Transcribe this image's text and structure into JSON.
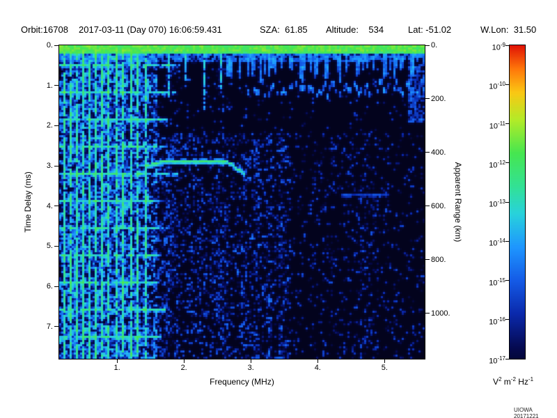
{
  "header": {
    "orbit": "Orbit:16708",
    "datetime": "2017-03-11 (Day 070) 16:06:59.431",
    "sza": "SZA:  61.85",
    "altitude": "Altitude:    534",
    "lat": "Lat: -51.02",
    "wlon": "W.Lon:  31.50"
  },
  "axes": {
    "left": {
      "title": "Time Delay (ms)",
      "tick_labels": [
        "0.",
        "1.",
        "2.",
        "3.",
        "4.",
        "5.",
        "6.",
        "7."
      ],
      "tick_values": [
        0,
        1,
        2,
        3,
        4,
        5,
        6,
        7
      ]
    },
    "right": {
      "title": "Apparent Range (km)",
      "tick_labels": [
        "0.",
        "200.",
        "400.",
        "600.",
        "800.",
        "1000."
      ],
      "tick_values": [
        0,
        200,
        400,
        600,
        800,
        1000
      ],
      "km_per_ms": 150
    },
    "bottom": {
      "title": "Frequency (MHz)",
      "tick_labels": [
        "1.",
        "2.",
        "3.",
        "4.",
        "5."
      ],
      "tick_values": [
        1,
        2,
        3,
        4,
        5
      ]
    }
  },
  "colorbar": {
    "label_base": "10",
    "exponents": [
      "-9",
      "-10",
      "-11",
      "-12",
      "-13",
      "-14",
      "-15",
      "-16",
      "-17"
    ],
    "units_parts": [
      {
        "base": "V",
        "exp": "2"
      },
      {
        "base": " m",
        "exp": "-2"
      },
      {
        "base": " Hz",
        "exp": "-1"
      }
    ]
  },
  "credit": "UIOWA 20171221",
  "chart_data": {
    "type": "heatmap",
    "title": "Radar sounder ionogram spectrogram, Orbit 16708, 2017-03-11 16:06:59.431",
    "xlabel": "Frequency (MHz)",
    "ylabel": "Time Delay (ms)",
    "y2label": "Apparent Range (km)",
    "xlim": [
      0.135,
      5.6
    ],
    "ylim": [
      0,
      7.8
    ],
    "y2lim": [
      0,
      1170
    ],
    "zscale": {
      "type": "log",
      "units": "V^2 m^-2 Hz^-1",
      "min": 1e-17,
      "max": 1e-09
    },
    "legend_position": "right-colorbar",
    "grid": false,
    "render_seed": 1337,
    "colormap": [
      {
        "v": 0.0,
        "c": "#020210"
      },
      {
        "v": 0.1,
        "c": "#05094f"
      },
      {
        "v": 0.2,
        "c": "#0a28aa"
      },
      {
        "v": 0.3,
        "c": "#145ae6"
      },
      {
        "v": 0.4,
        "c": "#1e96ff"
      },
      {
        "v": 0.5,
        "c": "#28d2dc"
      },
      {
        "v": 0.58,
        "c": "#32e196"
      },
      {
        "v": 0.68,
        "c": "#46e650"
      },
      {
        "v": 0.78,
        "c": "#b4eb28"
      },
      {
        "v": 0.86,
        "c": "#fac814"
      },
      {
        "v": 0.93,
        "c": "#ff780a"
      },
      {
        "v": 1.0,
        "c": "#e11405"
      }
    ],
    "features": {
      "surface_band": {
        "delay_ms": [
          0,
          0.18
        ],
        "glow_to_ms": 0.4,
        "intensity": 0.62
      },
      "plasma_harmonic_stripes": {
        "freqs_mhz": [
          0.2,
          0.29,
          0.38,
          0.47,
          0.56,
          0.66,
          0.76,
          0.86,
          0.97,
          1.08,
          1.19,
          1.3,
          1.42
        ],
        "intensity": 0.52
      },
      "short_stripes": {
        "freqs_mhz": [
          1.75,
          2.02,
          2.3,
          2.55
        ],
        "end_delay_ms": [
          1.3,
          0.9,
          1.6,
          1.1
        ],
        "intensity": 0.48
      },
      "cyclotron_lines": {
        "first_delay_ms": 0.45,
        "period_ms": 0.68,
        "max_freq_mhz": 1.6,
        "intensity": 0.47
      },
      "ionosphere_trace": {
        "freq_range_mhz": [
          1.45,
          2.88
        ],
        "delay_ms": 2.85,
        "intensity": 0.6
      },
      "surface_echo_trace": {
        "freq_range_mhz": [
          2.95,
          5.6
        ],
        "delay_ms": 1.05,
        "intensity": 0.4
      },
      "faint_streak": {
        "freq_range_mhz": [
          4.35,
          5.05
        ],
        "delay_ms": 3.68,
        "intensity": 0.28
      },
      "right_edge_smear": {
        "freq_min_mhz": 5.35,
        "max_delay_ms": 1.9,
        "intensity": 0.3
      },
      "noise": {
        "low_freq_max_mhz": 1.6,
        "mid_freq_max_mhz": 3.6,
        "p_low": 0.55,
        "p_mid": 0.3,
        "p_high": 0.13,
        "quiet_above_delay_ms": 2.2
      }
    }
  }
}
